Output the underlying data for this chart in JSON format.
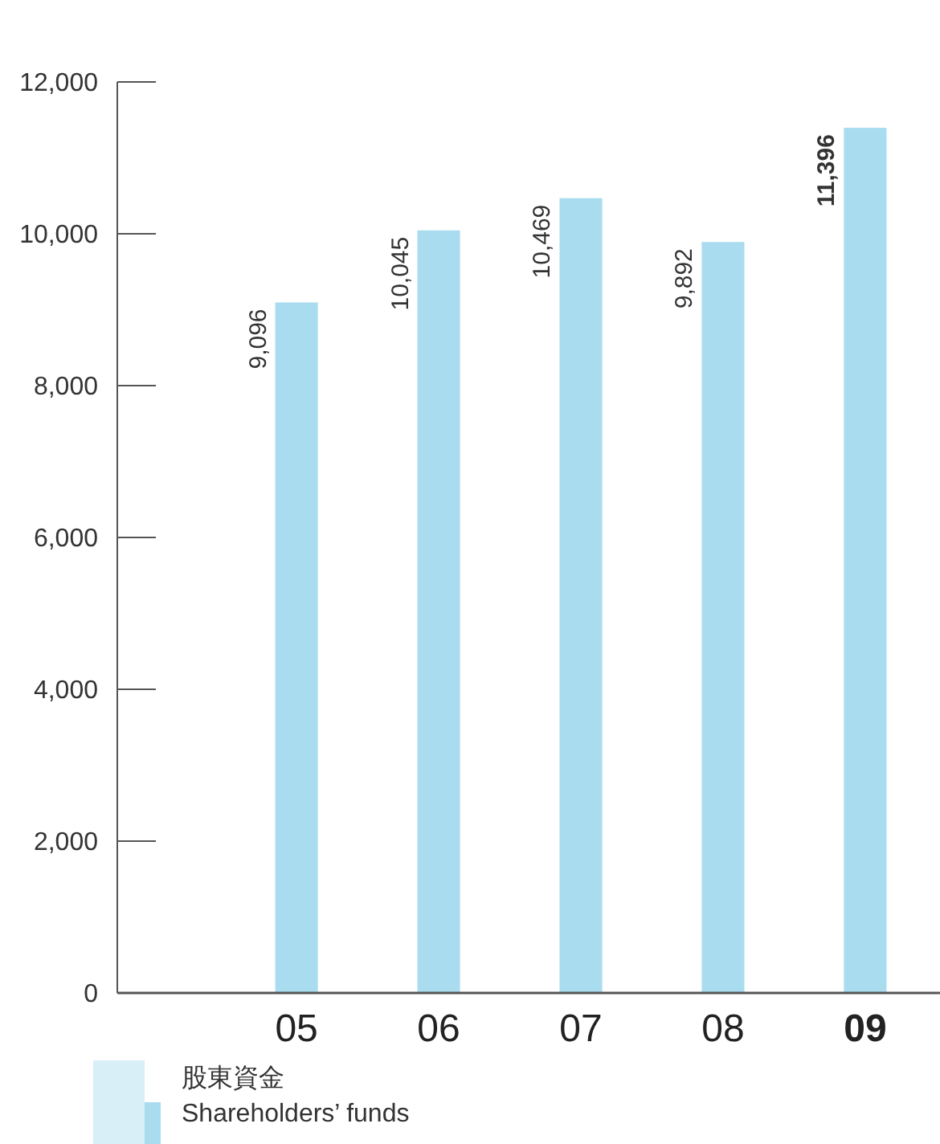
{
  "chart_data": {
    "type": "bar",
    "categories": [
      "05",
      "06",
      "07",
      "08",
      "09"
    ],
    "series": [
      {
        "name": "股東資金\nShareholders’ funds",
        "color": "#a9dcef",
        "values": [
          9096,
          10045,
          10469,
          9892,
          11396
        ]
      }
    ],
    "ylim": [
      0,
      12000
    ],
    "yticks": [
      {
        "value": 0,
        "label": "0"
      },
      {
        "value": 2000,
        "label": "2,000"
      },
      {
        "value": 4000,
        "label": "4,000"
      },
      {
        "value": 6000,
        "label": "6,000"
      },
      {
        "value": 8000,
        "label": "8,000"
      },
      {
        "value": 10000,
        "label": "10,000"
      },
      {
        "value": 12000,
        "label": "12,000"
      }
    ],
    "value_labels": [
      "9,096",
      "10,045",
      "10,469",
      "9,892",
      "11,396"
    ],
    "grid": false,
    "legend": "bottom left"
  }
}
